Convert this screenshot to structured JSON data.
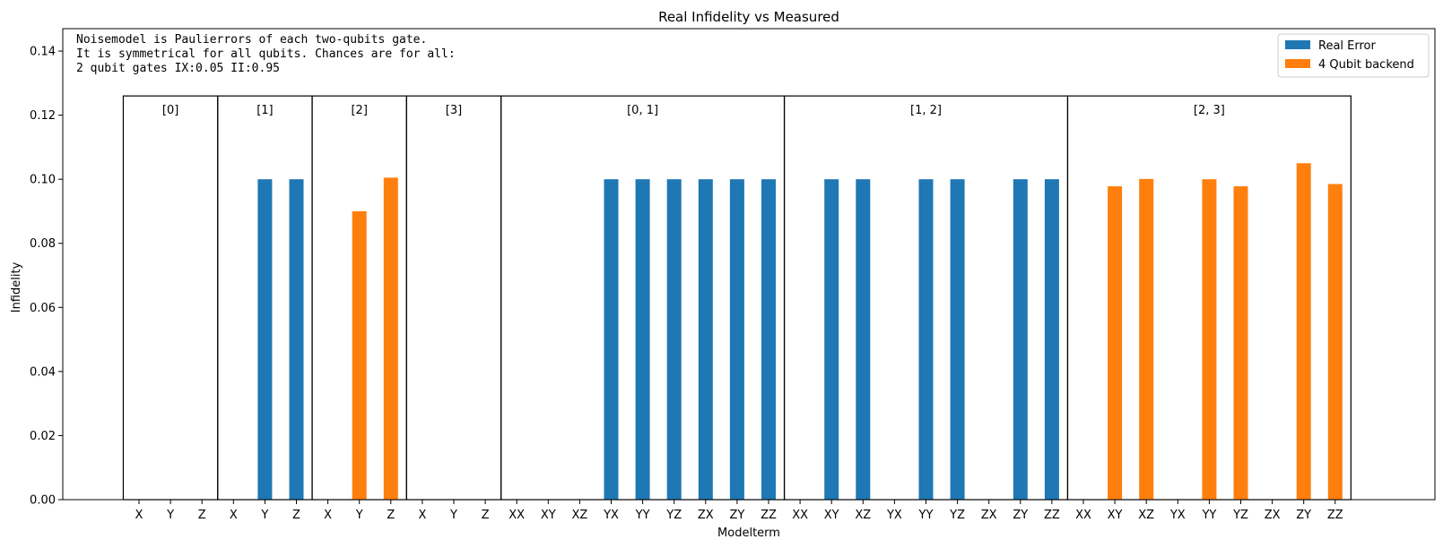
{
  "chart_data": {
    "type": "bar",
    "title": "Real Infidelity vs Measured",
    "xlabel": "Modelterm",
    "ylabel": "Infidelity",
    "ylim": [
      0,
      0.147
    ],
    "yticks": [
      "0.00",
      "0.02",
      "0.04",
      "0.06",
      "0.08",
      "0.10",
      "0.12",
      "0.14"
    ],
    "note_lines": [
      "Noisemodel is Paulierrors of each two-qubits gate.",
      "It is symmetrical for all qubits. Chances are for all:",
      "2 qubit gates IX:0.05   II:0.95"
    ],
    "legend_position": "top-right",
    "group_box_height": 0.126,
    "groups": [
      {
        "label": "[0]",
        "terms": [
          "X",
          "Y",
          "Z"
        ]
      },
      {
        "label": "[1]",
        "terms": [
          "X",
          "Y",
          "Z"
        ]
      },
      {
        "label": "[2]",
        "terms": [
          "X",
          "Y",
          "Z"
        ]
      },
      {
        "label": "[3]",
        "terms": [
          "X",
          "Y",
          "Z"
        ]
      },
      {
        "label": "[0, 1]",
        "terms": [
          "XX",
          "XY",
          "XZ",
          "YX",
          "YY",
          "YZ",
          "ZX",
          "ZY",
          "ZZ"
        ]
      },
      {
        "label": "[1, 2]",
        "terms": [
          "XX",
          "XY",
          "XZ",
          "YX",
          "YY",
          "YZ",
          "ZX",
          "ZY",
          "ZZ"
        ]
      },
      {
        "label": "[2, 3]",
        "terms": [
          "XX",
          "XY",
          "XZ",
          "YX",
          "YY",
          "YZ",
          "ZX",
          "ZY",
          "ZZ"
        ]
      }
    ],
    "series": [
      {
        "name": "Real Error",
        "color": "#1f77b4",
        "values": [
          0,
          0,
          0,
          0,
          0.1,
          0.1,
          0,
          0,
          0,
          0,
          0,
          0,
          0,
          0,
          0,
          0.1,
          0.1,
          0.1,
          0.1,
          0.1,
          0.1,
          0,
          0.1,
          0.1,
          0,
          0.1,
          0.1,
          0,
          0.1,
          0.1,
          0,
          0,
          0,
          0,
          0,
          0,
          0,
          0,
          0
        ]
      },
      {
        "name": "4 Qubit backend",
        "color": "#ff7f0e",
        "values": [
          0,
          0,
          0,
          0,
          0,
          0,
          0,
          0.09,
          0.1005,
          0,
          0,
          0,
          0,
          0,
          0,
          0,
          0,
          0,
          0,
          0,
          0,
          0,
          0,
          0,
          0,
          0,
          0,
          0,
          0,
          0,
          0,
          0.0978,
          0.1001,
          0,
          0.1,
          0.0978,
          0,
          0.105,
          0.0985
        ]
      }
    ]
  }
}
